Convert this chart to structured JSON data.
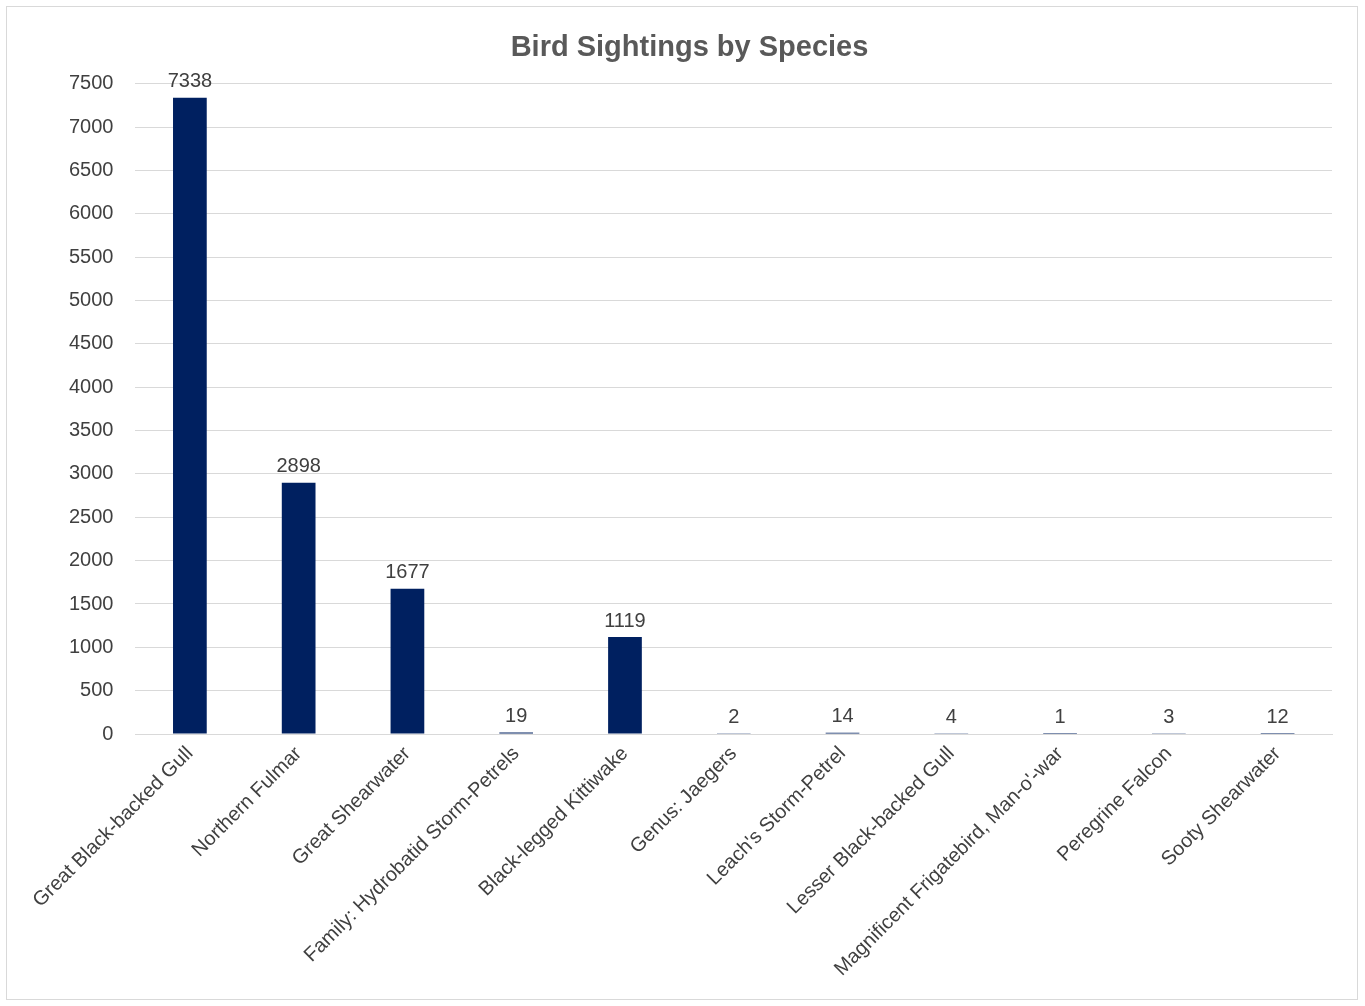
{
  "chart_data": {
    "type": "bar",
    "title": "Bird Sightings by Species",
    "categories": [
      "Great Black-backed Gull",
      "Northern Fulmar",
      "Great Shearwater",
      "Family: Hydrobatid Storm-Petrels",
      "Black-legged Kittiwake",
      "Genus: Jaegers",
      "Leach's Storm-Petrel",
      "Lesser Black-backed Gull",
      "Magnificent Frigatebird, Man-o'-war",
      "Peregrine Falcon",
      "Sooty Shearwater"
    ],
    "values": [
      7338,
      2898,
      1677,
      19,
      1119,
      2,
      14,
      4,
      1,
      3,
      12
    ],
    "color": "#002060",
    "ylim": [
      0,
      7500
    ],
    "yticks": [
      0,
      500,
      1000,
      1500,
      2000,
      2500,
      3000,
      3500,
      4000,
      4500,
      5000,
      5500,
      6000,
      6500,
      7000,
      7500
    ],
    "grid": "y",
    "data_labels": true,
    "legend": false
  }
}
